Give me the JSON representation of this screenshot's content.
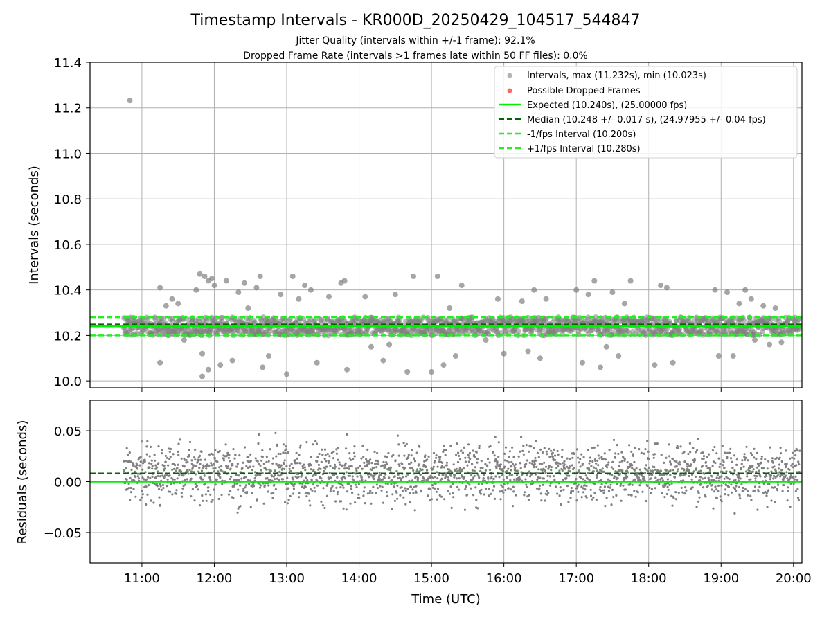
{
  "figure": {
    "title": "Timestamp Intervals - KR000D_20250429_104517_544847",
    "subtitle_1": "Jitter Quality (intervals within +/-1 frame): 92.1%",
    "subtitle_2": "Dropped Frame Rate (intervals >1 frames late within 50 FF files): 0.0%"
  },
  "colors": {
    "points": "#808080",
    "dropped": "#ff6666",
    "expected": "#00ee00",
    "median": "#006400",
    "bounds": "#22ee22",
    "grid": "#b0b0b0"
  },
  "chart_data": [
    {
      "type": "scatter",
      "panel": "intervals",
      "ylabel": "Intervals (seconds)",
      "ylim": [
        9.97,
        11.4
      ],
      "yticks": [
        10.0,
        10.2,
        10.4,
        10.6,
        10.8,
        11.0,
        11.2,
        11.4
      ],
      "ytick_labels": [
        "10.0",
        "10.2",
        "10.4",
        "10.6",
        "10.8",
        "11.0",
        "11.2",
        "11.4"
      ],
      "grid": true,
      "legend_placement": "upper-right",
      "series": [
        {
          "name": "Intervals, max (11.232s), min (10.023s)",
          "kind": "points",
          "x_start": "10:45",
          "x_end": "20:05",
          "typical_range": [
            10.2,
            10.28
          ],
          "outliers": [
            [
              "10:50",
              11.232
            ],
            [
              "11:15",
              10.41
            ],
            [
              "11:15",
              10.08
            ],
            [
              "11:20",
              10.33
            ],
            [
              "11:25",
              10.36
            ],
            [
              "11:30",
              10.34
            ],
            [
              "11:35",
              10.18
            ],
            [
              "11:45",
              10.4
            ],
            [
              "11:50",
              10.12
            ],
            [
              "11:55",
              10.44
            ],
            [
              "11:48",
              10.47
            ],
            [
              "11:52",
              10.46
            ],
            [
              "11:58",
              10.45
            ],
            [
              "12:00",
              10.42
            ],
            [
              "11:50",
              10.02
            ],
            [
              "11:55",
              10.05
            ],
            [
              "12:05",
              10.07
            ],
            [
              "12:10",
              10.44
            ],
            [
              "12:15",
              10.09
            ],
            [
              "12:20",
              10.39
            ],
            [
              "12:25",
              10.43
            ],
            [
              "12:28",
              10.32
            ],
            [
              "12:35",
              10.41
            ],
            [
              "12:38",
              10.46
            ],
            [
              "12:40",
              10.06
            ],
            [
              "12:45",
              10.11
            ],
            [
              "12:55",
              10.38
            ],
            [
              "13:00",
              10.03
            ],
            [
              "13:05",
              10.46
            ],
            [
              "13:10",
              10.36
            ],
            [
              "13:15",
              10.42
            ],
            [
              "13:20",
              10.4
            ],
            [
              "13:25",
              10.08
            ],
            [
              "13:35",
              10.37
            ],
            [
              "13:45",
              10.43
            ],
            [
              "13:48",
              10.44
            ],
            [
              "13:50",
              10.05
            ],
            [
              "14:05",
              10.37
            ],
            [
              "14:10",
              10.15
            ],
            [
              "14:20",
              10.09
            ],
            [
              "14:25",
              10.16
            ],
            [
              "14:30",
              10.38
            ],
            [
              "14:40",
              10.04
            ],
            [
              "14:45",
              10.46
            ],
            [
              "15:00",
              10.04
            ],
            [
              "15:05",
              10.46
            ],
            [
              "15:10",
              10.07
            ],
            [
              "15:15",
              10.32
            ],
            [
              "15:20",
              10.11
            ],
            [
              "15:25",
              10.42
            ],
            [
              "15:45",
              10.18
            ],
            [
              "15:55",
              10.36
            ],
            [
              "16:00",
              10.12
            ],
            [
              "16:15",
              10.35
            ],
            [
              "16:20",
              10.13
            ],
            [
              "16:25",
              10.4
            ],
            [
              "16:30",
              10.1
            ],
            [
              "16:35",
              10.36
            ],
            [
              "17:00",
              10.4
            ],
            [
              "17:05",
              10.08
            ],
            [
              "17:10",
              10.38
            ],
            [
              "17:15",
              10.44
            ],
            [
              "17:20",
              10.06
            ],
            [
              "17:25",
              10.15
            ],
            [
              "17:30",
              10.39
            ],
            [
              "17:35",
              10.11
            ],
            [
              "17:40",
              10.34
            ],
            [
              "17:45",
              10.44
            ],
            [
              "18:05",
              10.07
            ],
            [
              "18:10",
              10.42
            ],
            [
              "18:15",
              10.41
            ],
            [
              "18:20",
              10.08
            ],
            [
              "18:55",
              10.4
            ],
            [
              "18:58",
              10.11
            ],
            [
              "19:05",
              10.39
            ],
            [
              "19:10",
              10.11
            ],
            [
              "19:15",
              10.34
            ],
            [
              "19:20",
              10.4
            ],
            [
              "19:25",
              10.36
            ],
            [
              "19:28",
              10.18
            ],
            [
              "19:35",
              10.33
            ],
            [
              "19:40",
              10.16
            ],
            [
              "19:45",
              10.32
            ],
            [
              "19:50",
              10.17
            ]
          ]
        },
        {
          "name": "Possible Dropped Frames",
          "kind": "points",
          "values": []
        },
        {
          "name": "Expected (10.240s), (25.00000 fps)",
          "kind": "hline",
          "y": 10.24,
          "style": "solid"
        },
        {
          "name": "Median (10.248 +/- 0.017 s), (24.97955 +/- 0.04 fps)",
          "kind": "hline",
          "y": 10.248,
          "style": "dashed"
        },
        {
          "name": "-1/fps Interval (10.200s)",
          "kind": "hline",
          "y": 10.2,
          "style": "dashed"
        },
        {
          "name": "+1/fps Interval (10.280s)",
          "kind": "hline",
          "y": 10.28,
          "style": "dashed"
        }
      ]
    },
    {
      "type": "scatter",
      "panel": "residuals",
      "xlabel": "Time (UTC)",
      "ylabel": "Residuals (seconds)",
      "ylim": [
        -0.08,
        0.08
      ],
      "yticks": [
        -0.05,
        0.0,
        0.05
      ],
      "ytick_labels": [
        "−0.05",
        "0.00",
        "0.05"
      ],
      "xlim": [
        "10:17",
        "20:07"
      ],
      "xticks": [
        "11:00",
        "12:00",
        "13:00",
        "14:00",
        "15:00",
        "16:00",
        "17:00",
        "18:00",
        "19:00",
        "20:00"
      ],
      "grid": true,
      "series": [
        {
          "kind": "points",
          "x_start": "10:45",
          "x_end": "20:05",
          "typical_range": [
            -0.03,
            0.045
          ]
        },
        {
          "kind": "hline",
          "y": 0.008,
          "style": "dashed"
        },
        {
          "kind": "hline",
          "y": 0.0,
          "style": "solid"
        }
      ]
    }
  ]
}
